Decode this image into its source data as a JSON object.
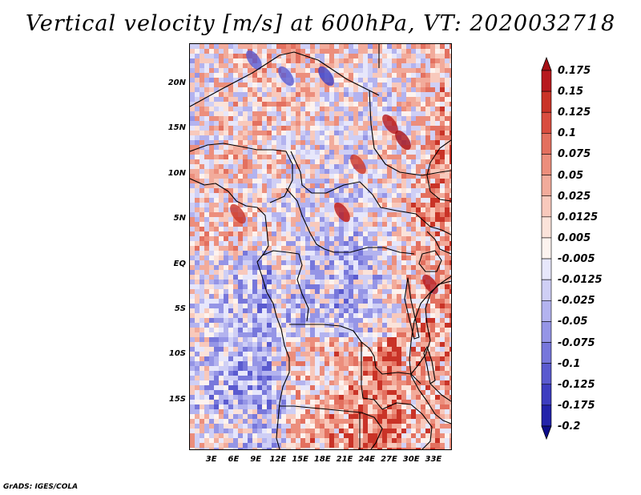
{
  "title": "Vertical velocity [m/s] at 600hPa, VT: 2020032718",
  "credit": "GrADS: IGES/COLA",
  "chart_data": {
    "type": "heatmap",
    "title": "Vertical velocity [m/s] at 600hPa, VT: 2020032718",
    "variable": "Vertical velocity",
    "units": "m/s",
    "level": "600hPa",
    "valid_time": "2020032718",
    "lon_range": [
      0,
      35.5
    ],
    "lat_range": [
      -20.5,
      24.5
    ],
    "lat_ticks": [
      {
        "value": 20,
        "label": "20N"
      },
      {
        "value": 15,
        "label": "15N"
      },
      {
        "value": 10,
        "label": "10N"
      },
      {
        "value": 5,
        "label": "5N"
      },
      {
        "value": 0,
        "label": "EQ"
      },
      {
        "value": -5,
        "label": "5S"
      },
      {
        "value": -10,
        "label": "10S"
      },
      {
        "value": -15,
        "label": "15S"
      }
    ],
    "lon_ticks": [
      {
        "value": 3,
        "label": "3E"
      },
      {
        "value": 6,
        "label": "6E"
      },
      {
        "value": 9,
        "label": "9E"
      },
      {
        "value": 12,
        "label": "12E"
      },
      {
        "value": 15,
        "label": "15E"
      },
      {
        "value": 18,
        "label": "18E"
      },
      {
        "value": 21,
        "label": "21E"
      },
      {
        "value": 24,
        "label": "24E"
      },
      {
        "value": 27,
        "label": "27E"
      },
      {
        "value": 30,
        "label": "30E"
      },
      {
        "value": 33,
        "label": "33E"
      }
    ],
    "colorbar": {
      "levels": [
        "0.175",
        "0.15",
        "0.125",
        "0.1",
        "0.075",
        "0.05",
        "0.025",
        "0.0125",
        "0.005",
        "-0.005",
        "-0.0125",
        "-0.025",
        "-0.05",
        "-0.075",
        "-0.1",
        "-0.125",
        "-0.175",
        "-0.2"
      ],
      "colors": [
        "#a50f15",
        "#b7191e",
        "#c93327",
        "#d94d3f",
        "#e3705f",
        "#ec8e7c",
        "#f2ab9b",
        "#f8c9bc",
        "#fbe3da",
        "#fdf3ef",
        "#e7e7fb",
        "#cfcff5",
        "#b3b3ef",
        "#9595e6",
        "#7777db",
        "#5a5acf",
        "#3d3dc0",
        "#2323aa",
        "#0d0d8a"
      ]
    }
  }
}
